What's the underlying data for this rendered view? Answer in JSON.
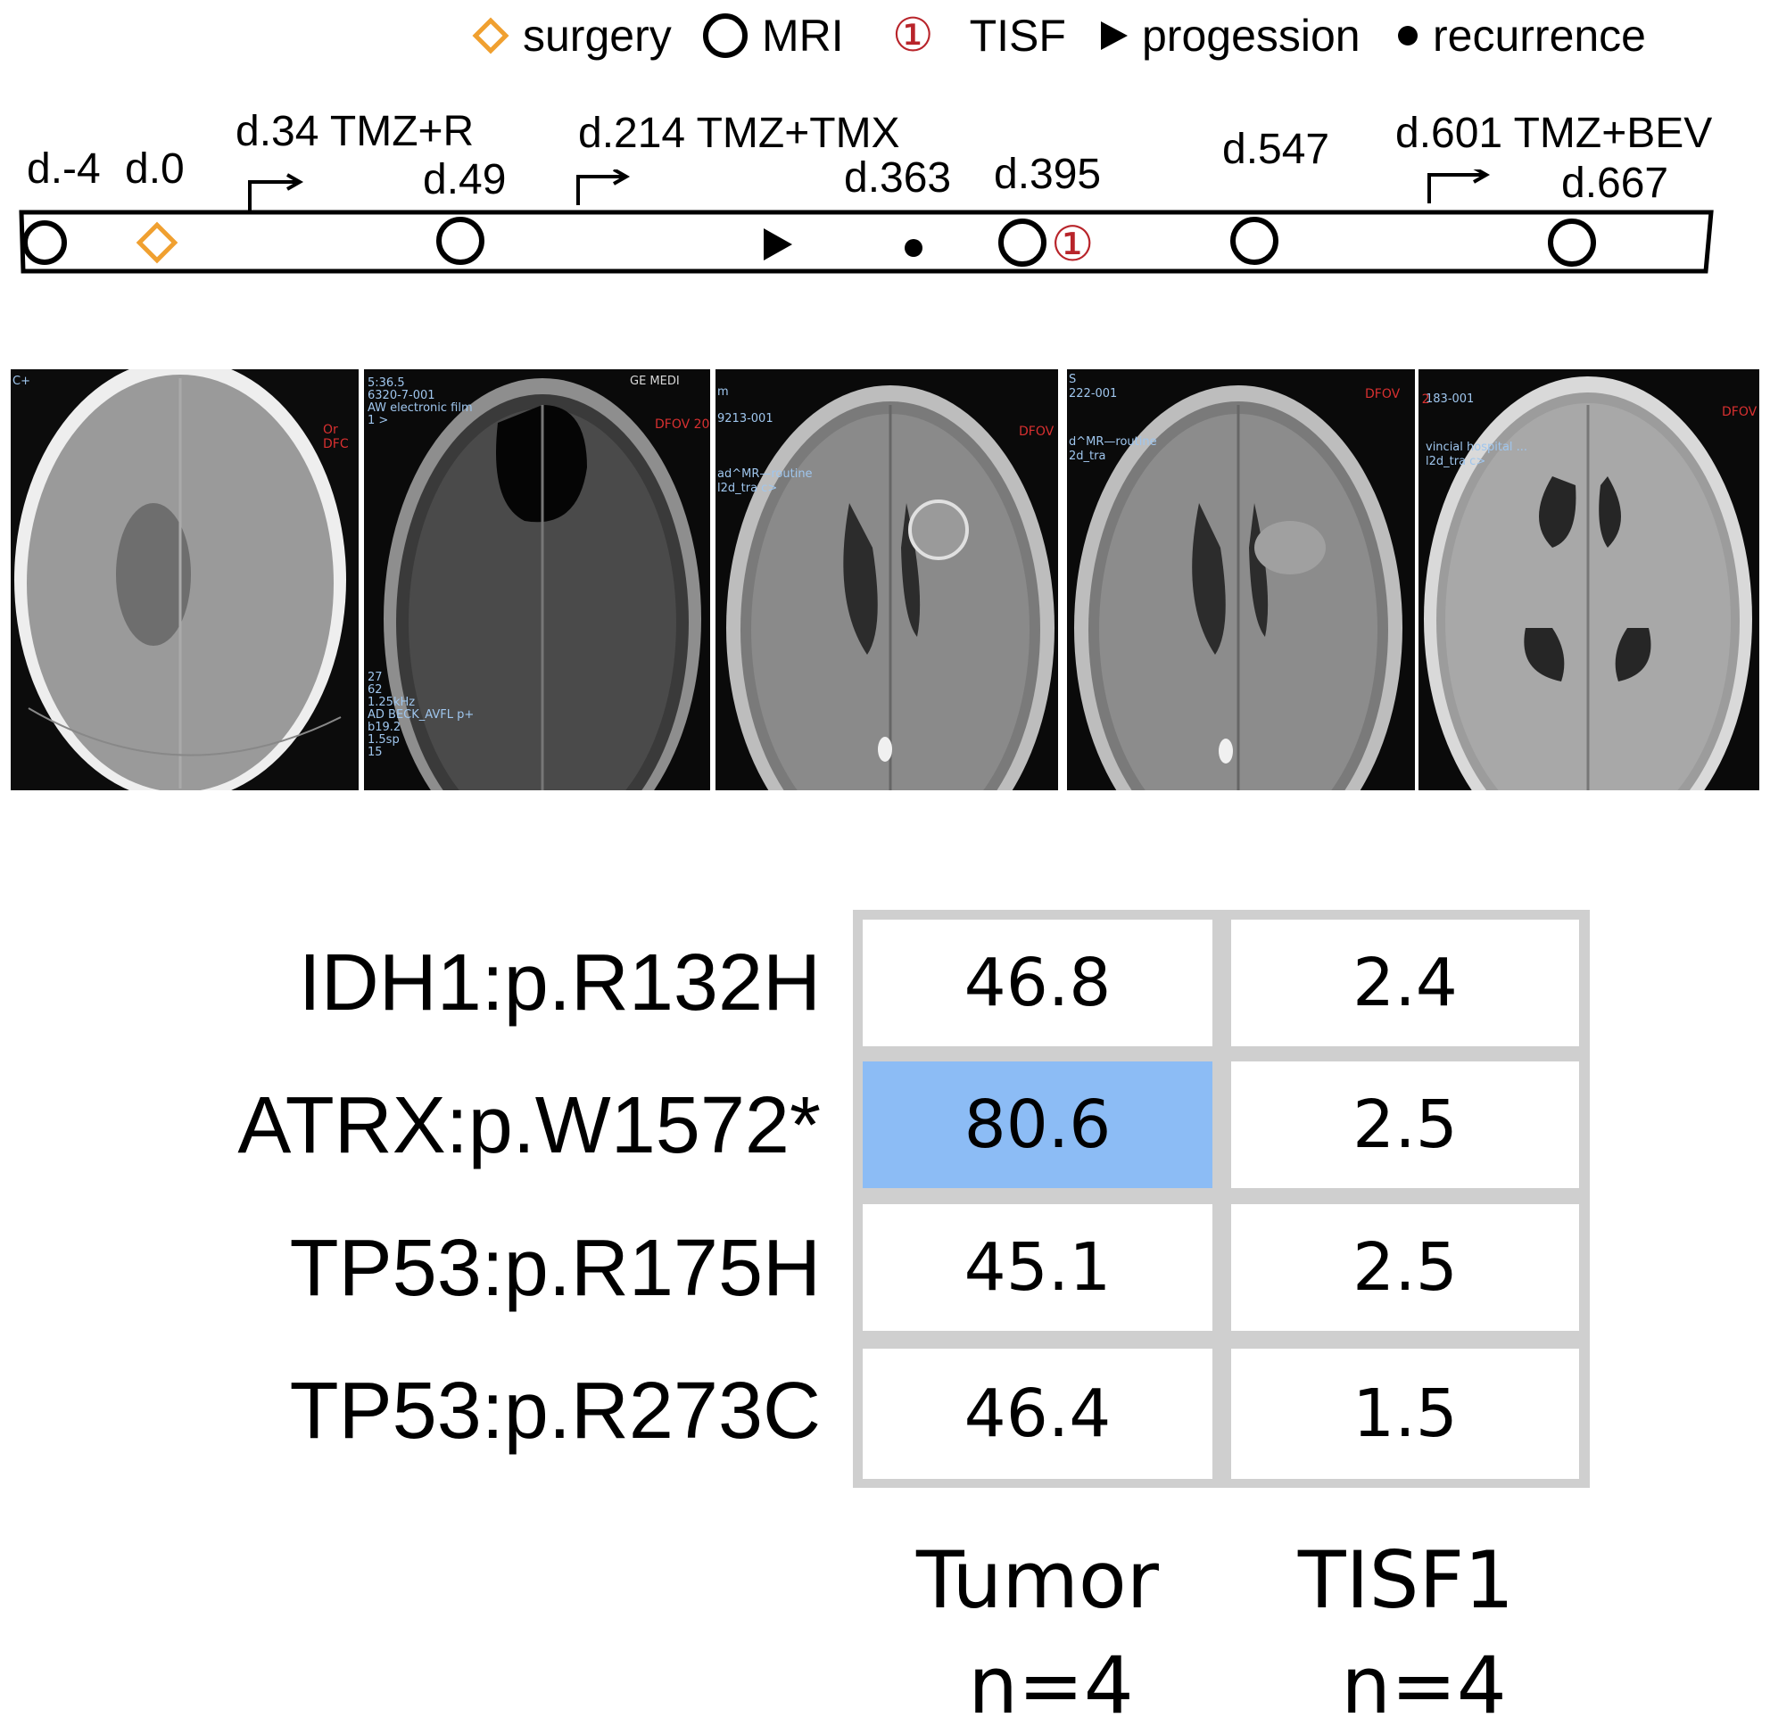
{
  "legend": [
    {
      "symbol": "diamond-orange",
      "label": "surgery"
    },
    {
      "symbol": "circle-open",
      "label": "MRI"
    },
    {
      "symbol": "circled-one",
      "label": "TISF"
    },
    {
      "symbol": "triangle-right",
      "label": "progession"
    },
    {
      "symbol": "dot",
      "label": "recurrence"
    }
  ],
  "legend_circled_glyph": "①",
  "timeline": {
    "labels": {
      "d_minus4": "d.-4",
      "d0": "d.0",
      "d34": "d.34 TMZ+R",
      "d49": "d.49",
      "d214": "d.214 TMZ+TMX",
      "d363": "d.363",
      "d395": "d.395",
      "d547": "d.547",
      "d601": "d.601 TMZ+BEV",
      "d667": "d.667"
    },
    "tisf_marker": "①",
    "colors": {
      "surgery": "#f0a030",
      "tisf": "#b8242a"
    }
  },
  "scans": [
    {
      "overlay": [
        "C+"
      ],
      "red": [
        "Or",
        "DFC"
      ]
    },
    {
      "overlay": [
        "5:36.5",
        "6320-7-001",
        "AW electronic film",
        "1 >",
        "27",
        "62",
        "1.25kHz",
        "AD BECK_AVFL p+",
        "b19.2",
        "1.5sp",
        "15"
      ],
      "head": [
        "GE MEDI"
      ],
      "red": [
        "DFOV 20"
      ]
    },
    {
      "overlay": [
        "m",
        "9213-001",
        "ad^MR—routine",
        "l2d_tra c>"
      ],
      "red": [
        "DFOV"
      ]
    },
    {
      "overlay": [
        "S",
        "222-001",
        "d^MR—routine",
        "2d_tra"
      ],
      "red": [
        "DFOV"
      ]
    },
    {
      "overlay": [
        "183-001",
        "vincial hospital ...",
        "l2d_tra c>"
      ],
      "red": [
        "DFOV 2",
        "DFOV"
      ]
    }
  ],
  "table": {
    "rows": [
      {
        "label": "IDH1:p.R132H",
        "tumor": "46.8",
        "tisf1": "2.4"
      },
      {
        "label": "ATRX:p.W1572*",
        "tumor": "80.6",
        "tisf1": "2.5"
      },
      {
        "label": "TP53:p.R175H",
        "tumor": "45.1",
        "tisf1": "2.5"
      },
      {
        "label": "TP53:p.R273C",
        "tumor": "46.4",
        "tisf1": "1.5"
      }
    ],
    "columns": [
      {
        "name": "Tumor",
        "n": "n=4"
      },
      {
        "name": "TISF1",
        "n": "n=4"
      }
    ],
    "highlight": {
      "row": 1,
      "column": "tumor",
      "color": "#8cbcf5"
    },
    "border_color": "#cfcfcf"
  }
}
